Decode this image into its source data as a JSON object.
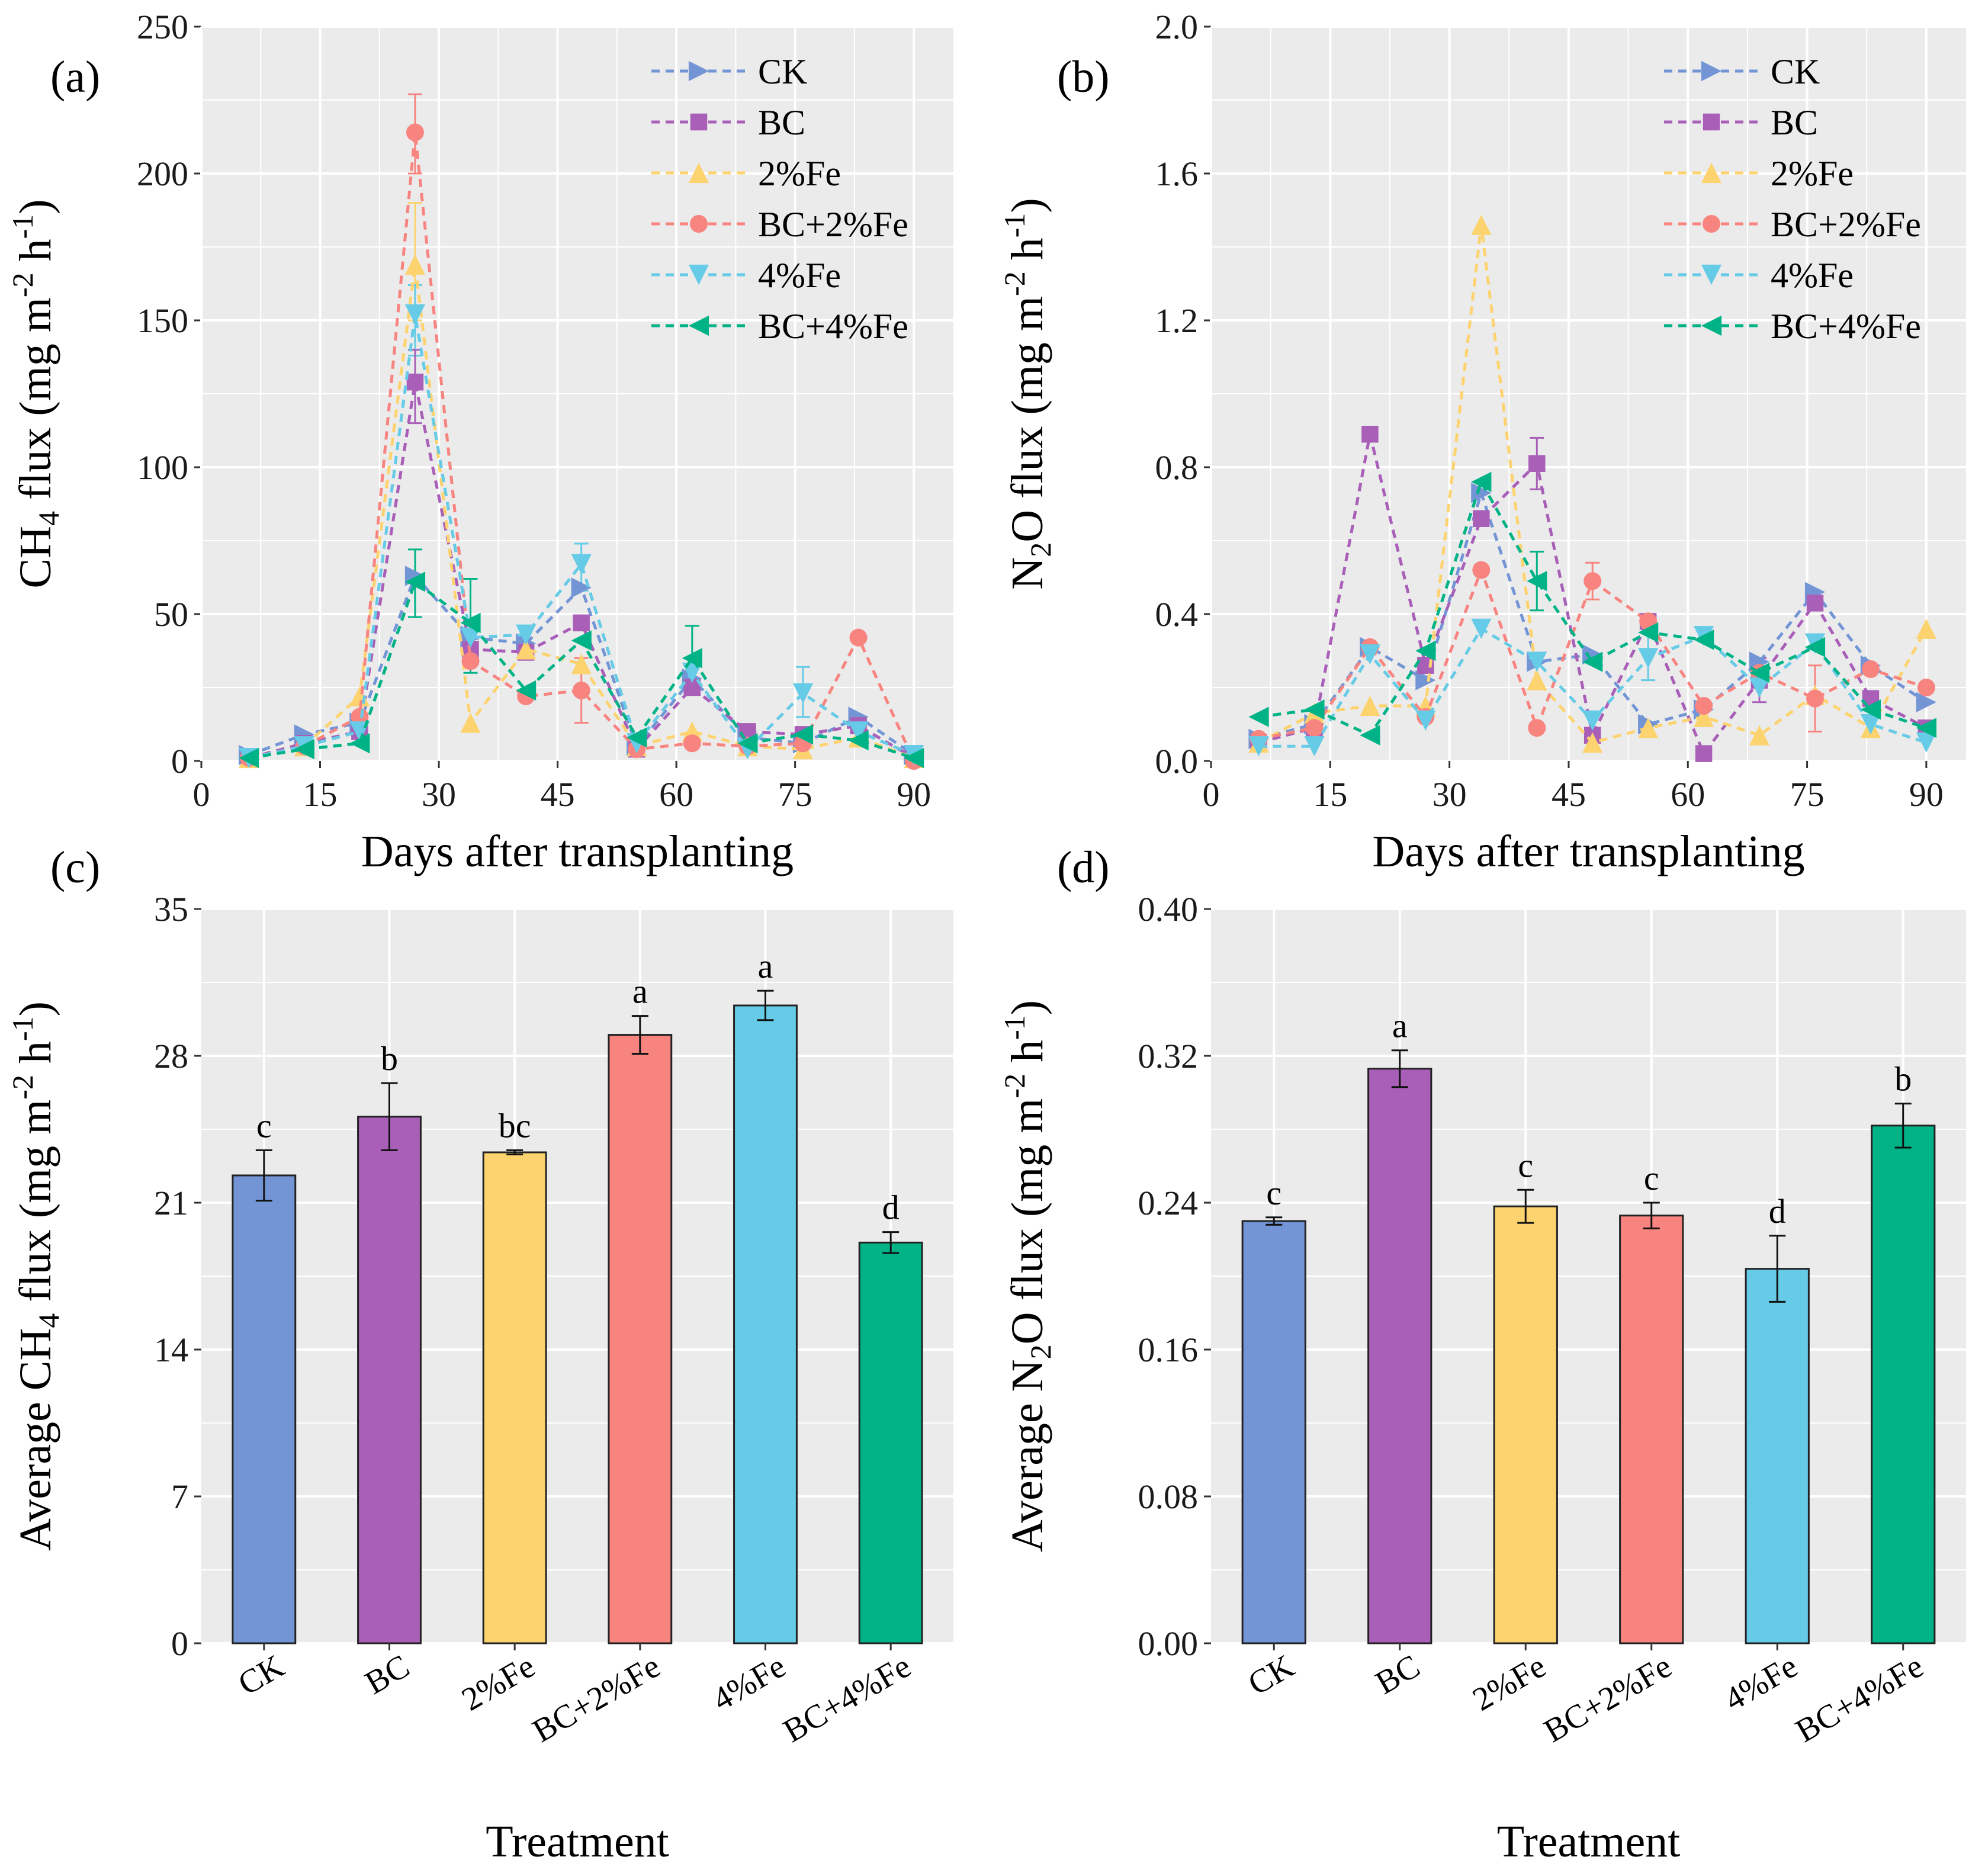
{
  "chart_data": [
    {
      "type": "line",
      "panel_label": "(a)",
      "xlabel": "Days after transplanting",
      "ylabel_parts": [
        "CH",
        "4",
        " flux (mg m",
        "-2",
        " h",
        "-1",
        ")"
      ],
      "xlim": [
        0,
        95
      ],
      "ylim": [
        0,
        250
      ],
      "xticks": [
        0,
        15,
        30,
        45,
        60,
        75,
        90
      ],
      "yticks": [
        0,
        50,
        100,
        150,
        200,
        250
      ],
      "legend_position": "top-right",
      "x": [
        6,
        13,
        20,
        27,
        34,
        41,
        48,
        55,
        62,
        69,
        76,
        83,
        90
      ],
      "series": [
        {
          "name": "CK",
          "color": "#7395d6",
          "marker": "triangle-right",
          "values": [
            2,
            9,
            13,
            63,
            42,
            40,
            59,
            5,
            28,
            8,
            6,
            15,
            2
          ]
        },
        {
          "name": "BC",
          "color": "#a95fb8",
          "marker": "square",
          "values": [
            1,
            6,
            10,
            129,
            38,
            37,
            47,
            4,
            25,
            10,
            9,
            12,
            1
          ]
        },
        {
          "name": "2%Fe",
          "color": "#fdd36f",
          "marker": "triangle-up",
          "values": [
            1,
            5,
            22,
            169,
            13,
            38,
            33,
            5,
            10,
            5,
            4,
            8,
            1
          ]
        },
        {
          "name": "BC+2%Fe",
          "color": "#f88480",
          "marker": "circle",
          "values": [
            1,
            5,
            15,
            214,
            34,
            22,
            24,
            4,
            6,
            5,
            6,
            42,
            0
          ]
        },
        {
          "name": "4%Fe",
          "color": "#66cbe6",
          "marker": "triangle-down",
          "values": [
            1,
            5,
            10,
            152,
            42,
            43,
            67,
            6,
            30,
            4,
            23,
            10,
            2
          ]
        },
        {
          "name": "BC+4%Fe",
          "color": "#00b387",
          "marker": "triangle-left",
          "values": [
            1,
            4,
            6,
            61,
            47,
            24,
            41,
            8,
            35,
            6,
            9,
            7,
            1
          ]
        }
      ],
      "error_bars": [
        {
          "series": "BC+2%Fe",
          "x": 27,
          "low": 200,
          "high": 227
        },
        {
          "series": "2%Fe",
          "x": 27,
          "low": 150,
          "high": 190
        },
        {
          "series": "4%Fe",
          "x": 27,
          "low": 138,
          "high": 162
        },
        {
          "series": "BC",
          "x": 27,
          "low": 115,
          "high": 140
        },
        {
          "series": "BC+4%Fe",
          "x": 27,
          "low": 49,
          "high": 72
        },
        {
          "series": "BC+4%Fe",
          "x": 34,
          "low": 30,
          "high": 62
        },
        {
          "series": "4%Fe",
          "x": 48,
          "low": 58,
          "high": 74
        },
        {
          "series": "BC+2%Fe",
          "x": 48,
          "low": 13,
          "high": 35
        },
        {
          "series": "BC+4%Fe",
          "x": 62,
          "low": 25,
          "high": 46
        },
        {
          "series": "4%Fe",
          "x": 76,
          "low": 15,
          "high": 32
        }
      ]
    },
    {
      "type": "line",
      "panel_label": "(b)",
      "xlabel": "Days after transplanting",
      "ylabel_parts": [
        "N",
        "2",
        "O flux (mg m",
        "-2",
        " h",
        "-1",
        ")"
      ],
      "xlim": [
        0,
        95
      ],
      "ylim": [
        0,
        2.0
      ],
      "xticks": [
        0,
        15,
        30,
        45,
        60,
        75,
        90
      ],
      "yticks": [
        0.0,
        0.4,
        0.8,
        1.2,
        1.6,
        2.0
      ],
      "ytick_labels": [
        "0.0",
        "0.4",
        "0.8",
        "1.2",
        "1.6",
        "2.0"
      ],
      "legend_position": "top-right",
      "x": [
        6,
        13,
        20,
        27,
        34,
        41,
        48,
        55,
        62,
        69,
        76,
        83,
        90
      ],
      "series": [
        {
          "name": "CK",
          "color": "#7395d6",
          "marker": "triangle-right",
          "values": [
            0.06,
            0.1,
            0.31,
            0.22,
            0.73,
            0.27,
            0.29,
            0.1,
            0.14,
            0.27,
            0.46,
            0.26,
            0.16
          ]
        },
        {
          "name": "BC",
          "color": "#a95fb8",
          "marker": "square",
          "values": [
            0.05,
            0.09,
            0.89,
            0.26,
            0.66,
            0.81,
            0.07,
            0.38,
            0.02,
            0.22,
            0.43,
            0.17,
            0.09
          ]
        },
        {
          "name": "2%Fe",
          "color": "#fdd36f",
          "marker": "triangle-up",
          "values": [
            0.05,
            0.13,
            0.15,
            0.15,
            1.46,
            0.22,
            0.05,
            0.09,
            0.12,
            0.07,
            0.18,
            0.09,
            0.36
          ]
        },
        {
          "name": "BC+2%Fe",
          "color": "#f88480",
          "marker": "circle",
          "values": [
            0.06,
            0.09,
            0.31,
            0.12,
            0.52,
            0.09,
            0.49,
            0.38,
            0.15,
            0.24,
            0.17,
            0.25,
            0.2
          ]
        },
        {
          "name": "4%Fe",
          "color": "#66cbe6",
          "marker": "triangle-down",
          "values": [
            0.04,
            0.04,
            0.29,
            0.11,
            0.36,
            0.27,
            0.11,
            0.28,
            0.34,
            0.2,
            0.32,
            0.1,
            0.05
          ]
        },
        {
          "name": "BC+4%Fe",
          "color": "#00b387",
          "marker": "triangle-left",
          "values": [
            0.12,
            0.14,
            0.07,
            0.3,
            0.76,
            0.49,
            0.27,
            0.35,
            0.33,
            0.24,
            0.31,
            0.14,
            0.09
          ]
        }
      ],
      "error_bars": [
        {
          "series": "BC",
          "x": 41,
          "low": 0.74,
          "high": 0.88
        },
        {
          "series": "BC+4%Fe",
          "x": 41,
          "low": 0.41,
          "high": 0.57
        },
        {
          "series": "BC+2%Fe",
          "x": 48,
          "low": 0.44,
          "high": 0.54
        },
        {
          "series": "BC+2%Fe",
          "x": 76,
          "low": 0.08,
          "high": 0.26
        },
        {
          "series": "4%Fe",
          "x": 55,
          "low": 0.22,
          "high": 0.35
        },
        {
          "series": "BC",
          "x": 69,
          "low": 0.16,
          "high": 0.28
        }
      ]
    },
    {
      "type": "bar",
      "panel_label": "(c)",
      "xlabel": "Treatment",
      "ylabel_parts": [
        "Average CH",
        "4",
        " flux (mg m",
        "-2",
        " h",
        "-1",
        ")"
      ],
      "ylim": [
        0,
        35
      ],
      "yticks": [
        0,
        7,
        14,
        21,
        28,
        35
      ],
      "categories": [
        "CK",
        "BC",
        "2%Fe",
        "BC+2%Fe",
        "4%Fe",
        "BC+4%Fe"
      ],
      "colors": [
        "#7395d6",
        "#a95fb8",
        "#fdd36f",
        "#f88480",
        "#66cbe6",
        "#00b387"
      ],
      "values": [
        22.3,
        25.1,
        23.4,
        29.0,
        30.4,
        19.1
      ],
      "errors": [
        1.2,
        1.6,
        0.1,
        0.9,
        0.7,
        0.5
      ],
      "letters": [
        "c",
        "b",
        "bc",
        "a",
        "a",
        "d"
      ]
    },
    {
      "type": "bar",
      "panel_label": "(d)",
      "xlabel": "Treatment",
      "ylabel_parts": [
        "Average N",
        "2",
        "O flux (mg m",
        "-2",
        " h",
        "-1",
        ")"
      ],
      "ylim": [
        0,
        0.4
      ],
      "yticks": [
        0,
        0.08,
        0.16,
        0.24,
        0.32,
        0.4
      ],
      "ytick_labels": [
        "0.00",
        "0.08",
        "0.16",
        "0.24",
        "0.32",
        "0.40"
      ],
      "categories": [
        "CK",
        "BC",
        "2%Fe",
        "BC+2%Fe",
        "4%Fe",
        "BC+4%Fe"
      ],
      "colors": [
        "#7395d6",
        "#a95fb8",
        "#fdd36f",
        "#f88480",
        "#66cbe6",
        "#00b387"
      ],
      "values": [
        0.23,
        0.313,
        0.238,
        0.233,
        0.204,
        0.282
      ],
      "errors": [
        0.002,
        0.01,
        0.009,
        0.007,
        0.018,
        0.012
      ],
      "letters": [
        "c",
        "a",
        "c",
        "c",
        "d",
        "b"
      ]
    }
  ]
}
